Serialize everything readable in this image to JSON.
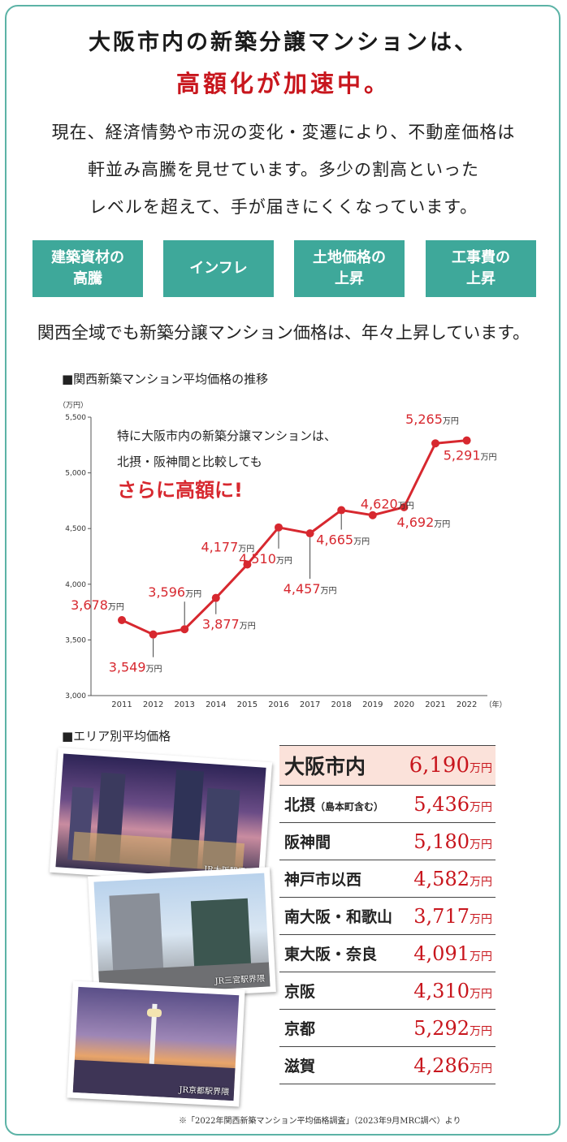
{
  "headline": {
    "line1": "大阪市内の新築分譲マンションは、",
    "line2": "高額化が加速中。"
  },
  "intro": [
    "現在、経済情勢や市況の変化・変遷により、不動産価格は",
    "軒並み高騰を見せています。多少の割高といった",
    "レベルを超えて、手が届きにくくなっています。"
  ],
  "factors": [
    "建築資材の\n高騰",
    "インフレ",
    "土地価格の\n上昇",
    "工事費の\n上昇"
  ],
  "lead": "関西全域でも新築分譲マンション価格は、年々上昇しています。",
  "chart_title": "■関西新築マンション平均価格の推移",
  "chart_data": {
    "type": "line",
    "title": "■関西新築マンション平均価格の推移",
    "ylabel_unit": "（万円）",
    "xlabel_unit": "（年）",
    "categories": [
      "2011",
      "2012",
      "2013",
      "2014",
      "2015",
      "2016",
      "2017",
      "2018",
      "2019",
      "2020",
      "2021",
      "2022"
    ],
    "values": [
      3678,
      3549,
      3596,
      3877,
      4177,
      4510,
      4457,
      4665,
      4620,
      4692,
      5265,
      5291
    ],
    "value_labels": [
      "3,678",
      "3,549",
      "3,596",
      "3,877",
      "4,177",
      "4,510",
      "4,457",
      "4,665",
      "4,620",
      "4,692",
      "5,265",
      "5,291"
    ],
    "value_unit": "万円",
    "ylim": [
      3000,
      5500
    ],
    "yticks": [
      3000,
      3500,
      4000,
      4500,
      5000,
      5500
    ],
    "ytick_labels": [
      "3,000",
      "3,500",
      "4,000",
      "4,500",
      "5,000",
      "5,500"
    ],
    "line_color": "#d7282f",
    "annotation": {
      "line1": "特に大阪市内の新築分譲マンションは、",
      "line2": "北摂・阪神間と比較しても",
      "emphasis": "さらに高額に!"
    }
  },
  "area_title": "■エリア別平均価格",
  "photos": [
    {
      "caption": "JR大阪駅界隈",
      "icon": "osaka-station-photo"
    },
    {
      "caption": "JR三宮駅界隈",
      "icon": "sannomiya-station-photo"
    },
    {
      "caption": "JR京都駅界隈",
      "icon": "kyoto-station-photo"
    }
  ],
  "areas": [
    {
      "name": "大阪市内",
      "sub": "",
      "value": "6,190",
      "unit": "万円"
    },
    {
      "name": "北摂",
      "sub": "（島本町含む）",
      "value": "5,436",
      "unit": "万円"
    },
    {
      "name": "阪神間",
      "sub": "",
      "value": "5,180",
      "unit": "万円"
    },
    {
      "name": "神戸市以西",
      "sub": "",
      "value": "4,582",
      "unit": "万円"
    },
    {
      "name": "南大阪・和歌山",
      "sub": "",
      "value": "3,717",
      "unit": "万円"
    },
    {
      "name": "東大阪・奈良",
      "sub": "",
      "value": "4,091",
      "unit": "万円"
    },
    {
      "name": "京阪",
      "sub": "",
      "value": "4,310",
      "unit": "万円"
    },
    {
      "name": "京都",
      "sub": "",
      "value": "5,292",
      "unit": "万円"
    },
    {
      "name": "滋賀",
      "sub": "",
      "value": "4,286",
      "unit": "万円"
    }
  ],
  "footnote": "※「2022年関西新築マンション平均価格調査」（2023年9月MRC調べ）より",
  "colors": {
    "accent": "#3ea89a",
    "red": "#c8161d",
    "highlight": "#fbe2da"
  }
}
